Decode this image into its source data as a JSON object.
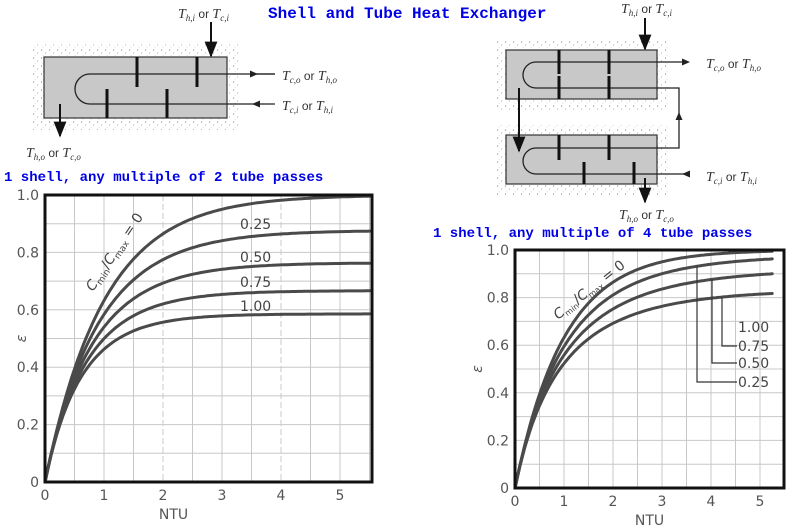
{
  "page": {
    "title": "Shell and Tube Heat Exchanger",
    "left_subtitle": "1 shell, any multiple of 2 tube passes",
    "right_subtitle": "1 shell, any multiple of 4 tube passes"
  },
  "diagrams": {
    "left": {
      "shell_in": "T_h,i or T_c,i",
      "tube_out": "T_c,o or T_h,o",
      "tube_in": "T_c,i or T_h,i",
      "shell_out": "T_h,o or T_c,o"
    },
    "right": {
      "shell_in": "T_h,i or T_c,i",
      "tube_out": "T_c,o or T_h,o",
      "tube_in": "T_c,i or T_h,i",
      "shell_out": "T_h,o or T_c,o"
    }
  },
  "chart_data": [
    {
      "type": "line",
      "title": "1 shell, any multiple of 2 tube passes",
      "xlabel": "NTU",
      "ylabel": "ε",
      "xlim": [
        0,
        5.5
      ],
      "ylim": [
        0,
        1.0
      ],
      "xticks": [
        "0",
        "1",
        "2",
        "3",
        "4",
        "5"
      ],
      "yticks": [
        "0",
        "0.2",
        "0.4",
        "0.6",
        "0.8",
        "1.0"
      ],
      "grid": true,
      "legend_title": "Cmin/Cmax",
      "x": [
        0,
        0.5,
        1,
        1.5,
        2,
        2.5,
        3,
        3.5,
        4,
        4.5,
        5,
        5.5
      ],
      "series": [
        {
          "name": "Cmin/Cmax = 0",
          "cr": 0,
          "values": [
            0,
            0.39,
            0.63,
            0.78,
            0.86,
            0.92,
            0.95,
            0.97,
            0.98,
            0.99,
            0.99,
            1.0
          ]
        },
        {
          "name": "0.25",
          "cr": 0.25,
          "values": [
            0,
            0.37,
            0.58,
            0.7,
            0.77,
            0.81,
            0.84,
            0.85,
            0.86,
            0.86,
            0.87,
            0.87
          ]
        },
        {
          "name": "0.50",
          "cr": 0.5,
          "values": [
            0,
            0.36,
            0.54,
            0.64,
            0.69,
            0.72,
            0.74,
            0.75,
            0.75,
            0.76,
            0.76,
            0.76
          ]
        },
        {
          "name": "0.75",
          "cr": 0.75,
          "values": [
            0,
            0.35,
            0.51,
            0.59,
            0.63,
            0.65,
            0.66,
            0.67,
            0.67,
            0.67,
            0.67,
            0.67
          ]
        },
        {
          "name": "1.00",
          "cr": 1.0,
          "values": [
            0,
            0.34,
            0.48,
            0.54,
            0.57,
            0.58,
            0.58,
            0.59,
            0.59,
            0.59,
            0.59,
            0.59
          ]
        }
      ],
      "annotations": [
        "Cmin/Cmax = 0",
        "0.25",
        "0.50",
        "0.75",
        "1.00"
      ]
    },
    {
      "type": "line",
      "title": "1 shell, any multiple of 4 tube passes",
      "xlabel": "NTU",
      "ylabel": "ε",
      "xlim": [
        0,
        5.5
      ],
      "ylim": [
        0,
        1.0
      ],
      "xticks": [
        "0",
        "1",
        "2",
        "3",
        "4",
        "5"
      ],
      "yticks": [
        "0",
        "0.2",
        "0.4",
        "0.6",
        "0.8",
        "1.0"
      ],
      "grid": true,
      "legend_title": "Cmin/Cmax",
      "x": [
        0,
        0.5,
        1,
        1.5,
        2,
        2.5,
        3,
        3.5,
        4,
        4.5,
        5,
        5.25
      ],
      "series": [
        {
          "name": "Cmin/Cmax = 0",
          "cr": 0,
          "values": [
            0,
            0.39,
            0.63,
            0.78,
            0.86,
            0.92,
            0.95,
            0.97,
            0.98,
            0.99,
            0.99,
            1.0
          ]
        },
        {
          "name": "0.25",
          "cr": 0.25,
          "values": [
            0,
            0.38,
            0.6,
            0.74,
            0.82,
            0.87,
            0.91,
            0.93,
            0.94,
            0.95,
            0.96,
            0.96
          ]
        },
        {
          "name": "0.50",
          "cr": 0.5,
          "values": [
            0,
            0.37,
            0.57,
            0.69,
            0.76,
            0.81,
            0.84,
            0.86,
            0.88,
            0.89,
            0.89,
            0.9
          ]
        },
        {
          "name": "0.75",
          "cr": 0.75,
          "values": [
            0,
            0.36,
            0.54,
            0.64,
            0.7,
            0.74,
            0.77,
            0.78,
            0.79,
            0.8,
            0.81,
            0.81
          ]
        },
        {
          "name": "1.00",
          "cr": 1.0,
          "values": [
            0,
            0.35,
            0.51,
            0.59,
            0.64,
            0.67,
            0.69,
            0.71,
            0.72,
            0.72,
            0.73,
            0.73
          ]
        }
      ],
      "legend_entries": [
        "1.00",
        "0.75",
        "0.50",
        "0.25"
      ]
    }
  ]
}
